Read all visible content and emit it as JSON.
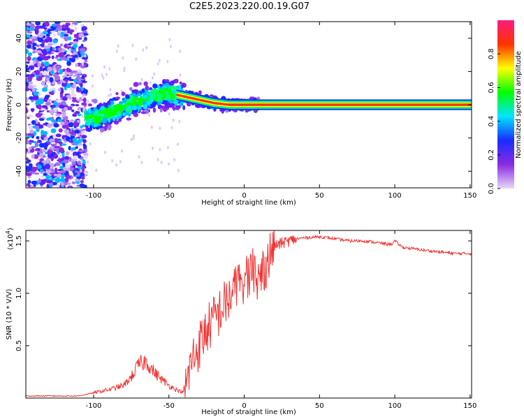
{
  "title": "C2E5.2023.220.00.19.G07",
  "chart_data": [
    {
      "type": "heatmap",
      "xlabel": "Height of straight line (km)",
      "ylabel": "Frequency (Hz)",
      "xlim": [
        -145,
        151
      ],
      "ylim": [
        -50,
        50
      ],
      "xticks": [
        -100,
        -50,
        0,
        50,
        100,
        150
      ],
      "yticks": [
        -40,
        -20,
        0,
        20,
        40
      ],
      "colorbar": {
        "label": "Normalized spectral amplitude",
        "range": [
          0,
          1
        ],
        "ticks": [
          "0.0",
          "0.2",
          "0.4",
          "0.6",
          "0.8"
        ],
        "colors": [
          "#e8d8f8",
          "#8a2be2",
          "#1a2cff",
          "#00e5ff",
          "#00ff00",
          "#ffff00",
          "#ff3300",
          "#ff1a80"
        ]
      },
      "tone_track": {
        "x": [
          -100,
          -90,
          -80,
          -70,
          -60,
          -50,
          -45,
          -40,
          -30,
          -20,
          -15,
          -10,
          -5,
          0,
          10,
          50,
          100,
          150
        ],
        "y": [
          -8,
          -5,
          -1,
          2,
          5,
          7,
          6,
          5,
          3,
          1,
          0.5,
          0,
          0,
          0,
          0,
          0,
          0,
          0
        ]
      }
    },
    {
      "type": "line",
      "xlabel": "Height of straight line (km)",
      "ylabel": "SNR (10 * V/V)",
      "multiplier": "(x10",
      "multiplier_exp": "4",
      "xlim": [
        -145,
        151
      ],
      "ylim": [
        0,
        1.6
      ],
      "xticks": [
        -100,
        -50,
        0,
        50,
        100,
        150
      ],
      "yticks": [
        "0.5",
        "1.0",
        "1.5"
      ],
      "ytick_values": [
        0.5,
        1.0,
        1.5
      ],
      "color": "#ee3333",
      "series": [
        {
          "x": [
            -145,
            -110,
            -100,
            -90,
            -80,
            -75,
            -70,
            -65,
            -60,
            -55,
            -50,
            -45,
            -40,
            -38,
            -35,
            -30,
            -25,
            -20,
            -15,
            -10,
            -5,
            0,
            5,
            10,
            15,
            20,
            25,
            30,
            35,
            40,
            50,
            60,
            70,
            80,
            90,
            95,
            98,
            100,
            105,
            120,
            140,
            151
          ],
          "y": [
            0.02,
            0.02,
            0.05,
            0.08,
            0.12,
            0.2,
            0.32,
            0.35,
            0.25,
            0.18,
            0.12,
            0.08,
            0.05,
            0.15,
            0.35,
            0.5,
            0.65,
            0.75,
            0.85,
            0.95,
            1.05,
            1.15,
            1.2,
            1.15,
            1.3,
            1.45,
            1.48,
            1.5,
            1.52,
            1.53,
            1.54,
            1.52,
            1.5,
            1.5,
            1.48,
            1.47,
            1.47,
            1.5,
            1.44,
            1.41,
            1.38,
            1.38
          ]
        }
      ]
    }
  ]
}
